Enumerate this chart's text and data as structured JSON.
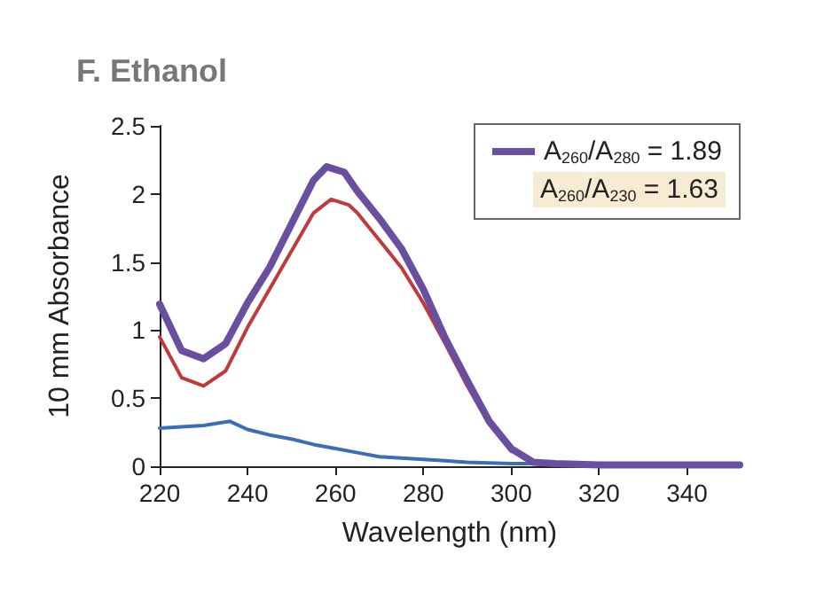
{
  "chart_data": {
    "type": "line",
    "title": "F. Ethanol",
    "xlabel": "Wavelength (nm)",
    "ylabel": "10 mm Absorbance",
    "xlim": [
      220,
      352
    ],
    "xticks": [
      220,
      240,
      260,
      280,
      300,
      320,
      340
    ],
    "ylim": [
      0,
      2.5
    ],
    "yticks": [
      0,
      {
        "value": 0.5,
        "label": "0.5"
      },
      1,
      {
        "value": 1.5,
        "label": "1.5"
      },
      2,
      {
        "value": 2.5,
        "label": "2.5"
      }
    ],
    "grid": false,
    "legend": "top right",
    "marker": "none",
    "line_style": "solid",
    "annotations": [
      "A$_{260}$/A$_{230}$ = 1.63"
    ],
    "series": [
      {
        "name": "A$_{260}$/A$_{280}$ = 1.89",
        "color": "#6a4fa0",
        "x": [
          220,
          225,
          230,
          235,
          240,
          245,
          250,
          255,
          258,
          262,
          265,
          270,
          275,
          280,
          285,
          290,
          295,
          300,
          305,
          310,
          320,
          330,
          340,
          352
        ],
        "values": [
          1.19,
          0.85,
          0.79,
          0.9,
          1.2,
          1.46,
          1.78,
          2.1,
          2.2,
          2.16,
          2.02,
          1.82,
          1.6,
          1.3,
          0.94,
          0.63,
          0.33,
          0.13,
          0.03,
          0.02,
          0.01,
          0.01,
          0.01,
          0.01
        ]
      },
      {
        "color": "#c0393b",
        "x": [
          220,
          225,
          230,
          235,
          240,
          245,
          250,
          255,
          259,
          263,
          265,
          270,
          275,
          280,
          285,
          290,
          295,
          300
        ],
        "values": [
          0.95,
          0.65,
          0.59,
          0.7,
          1.02,
          1.3,
          1.58,
          1.86,
          1.96,
          1.92,
          1.86,
          1.66,
          1.46,
          1.2,
          0.9,
          0.59,
          0.31,
          0.11
        ]
      },
      {
        "color": "#3a6fb5",
        "x": [
          220,
          225,
          230,
          236,
          240,
          245,
          250,
          255,
          260,
          265,
          270,
          275,
          280,
          290,
          300,
          310,
          320,
          330,
          340,
          352
        ],
        "values": [
          0.28,
          0.29,
          0.3,
          0.33,
          0.27,
          0.23,
          0.2,
          0.16,
          0.13,
          0.1,
          0.07,
          0.06,
          0.05,
          0.03,
          0.02,
          0.02,
          0.01,
          0.01,
          0.01,
          0.01
        ]
      }
    ]
  }
}
